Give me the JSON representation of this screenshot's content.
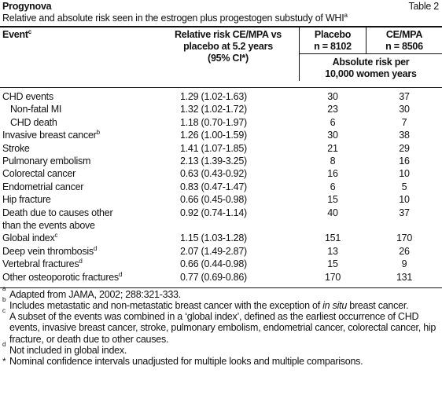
{
  "header": {
    "title": "Progynova",
    "table_label": "Table 2",
    "caption": "Relative and absolute risk seen in the estrogen plus progestogen substudy of WHI",
    "caption_sup": "a"
  },
  "table": {
    "columns": [
      {
        "lines": [
          "Event"
        ],
        "sup": "c"
      },
      {
        "lines": [
          "Relative risk CE/MPA vs",
          "placebo at 5.2 years",
          "(95% CI*)"
        ]
      },
      {
        "lines": [
          "Placebo",
          "n = 8102"
        ]
      },
      {
        "lines": [
          "CE/MPA",
          "n = 8506"
        ]
      }
    ],
    "absolute_header": [
      "Absolute risk per",
      "10,000 women years"
    ],
    "rows": [
      {
        "event": [
          "CHD events"
        ],
        "rr": "1.29 (1.02-1.63)",
        "placebo": 30,
        "cempa": 37
      },
      {
        "event": [
          "Non-fatal MI"
        ],
        "rr": "1.32 (1.02-1.72)",
        "placebo": 23,
        "cempa": 30
      },
      {
        "event": [
          "CHD death"
        ],
        "rr": "1.18 (0.70-1.97)",
        "placebo": 6,
        "cempa": 7
      },
      {
        "event": [
          "Invasive breast cancer"
        ],
        "sup": "b",
        "rr": "1.26 (1.00-1.59)",
        "placebo": 30,
        "cempa": 38
      },
      {
        "event": [
          "Stroke"
        ],
        "rr": "1.41 (1.07-1.85)",
        "placebo": 21,
        "cempa": 29
      },
      {
        "event": [
          "Pulmonary embolism"
        ],
        "rr": "2.13 (1.39-3.25)",
        "placebo": 8,
        "cempa": 16
      },
      {
        "event": [
          "Colorectal cancer"
        ],
        "rr": "0.63 (0.43-0.92)",
        "placebo": 16,
        "cempa": 10
      },
      {
        "event": [
          "Endometrial cancer"
        ],
        "rr": "0.83 (0.47-1.47)",
        "placebo": 6,
        "cempa": 5
      },
      {
        "event": [
          "Hip fracture"
        ],
        "rr": "0.66 (0.45-0.98)",
        "placebo": 15,
        "cempa": 10
      },
      {
        "event": [
          "Death due to causes other",
          "than the events above"
        ],
        "rr": "0.92 (0.74-1.14)",
        "placebo": 40,
        "cempa": 37
      },
      {
        "event": [
          "Global index"
        ],
        "sup": "c",
        "rr": "1.15 (1.03-1.28)",
        "placebo": 151,
        "cempa": 170
      },
      {
        "event": [
          "Deep vein thrombosis"
        ],
        "sup": "d",
        "rr": "2.07 (1.49-2.87)",
        "placebo": 13,
        "cempa": 26
      },
      {
        "event": [
          "Vertebral fractures"
        ],
        "sup": "d",
        "rr": "0.66 (0.44-0.98)",
        "placebo": 15,
        "cempa": 9
      },
      {
        "event": [
          "Other osteoporotic fractures"
        ],
        "sup": "d",
        "rr": "0.77 (0.69-0.86)",
        "placebo": 170,
        "cempa": 131
      }
    ]
  },
  "footnotes": [
    {
      "mark": "a",
      "parts": [
        "Adapted from JAMA, 2002; 288:321-333."
      ]
    },
    {
      "mark": "b",
      "parts": [
        "Includes metastatic and non-metastatic breast cancer with the exception of ",
        "in situ",
        " breast cancer."
      ]
    },
    {
      "mark": "c",
      "parts": [
        "A subset of the events was combined in a ‘global index’, defined as the earliest occurrence of CHD events, invasive breast cancer, stroke, pulmonary embolism, endometrial cancer, colorectal cancer, hip fracture, or death due to other causes."
      ]
    },
    {
      "mark": "d",
      "parts": [
        "Not included in global index."
      ]
    },
    {
      "mark": "*",
      "parts": [
        "Nominal confidence intervals unadjusted for multiple looks and multiple comparisons."
      ]
    }
  ]
}
